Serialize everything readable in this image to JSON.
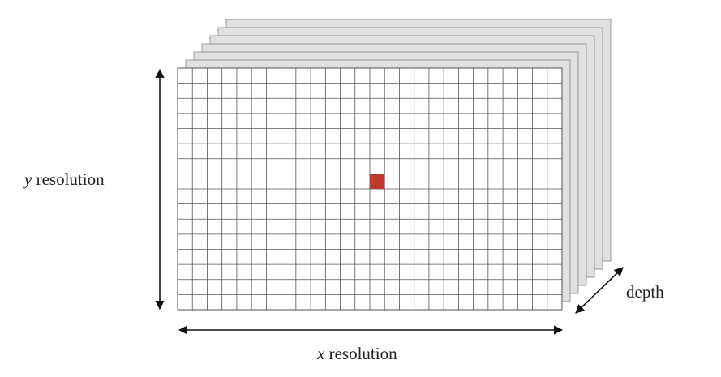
{
  "labels": {
    "y": {
      "variable": "y",
      "text": " resolution"
    },
    "x": {
      "variable": "x",
      "text": " resolution"
    },
    "depth": "depth"
  },
  "grid": {
    "columns": 26,
    "rows": 16,
    "highlight_cell": {
      "col": 13,
      "row": 7
    }
  },
  "layers": {
    "count": 7
  },
  "colors": {
    "grid_line": "#555555",
    "layer_fill": "#e0e0e0",
    "layer_stroke": "#9a9a9a",
    "highlight": "#c0392b",
    "arrow": "#111111"
  }
}
